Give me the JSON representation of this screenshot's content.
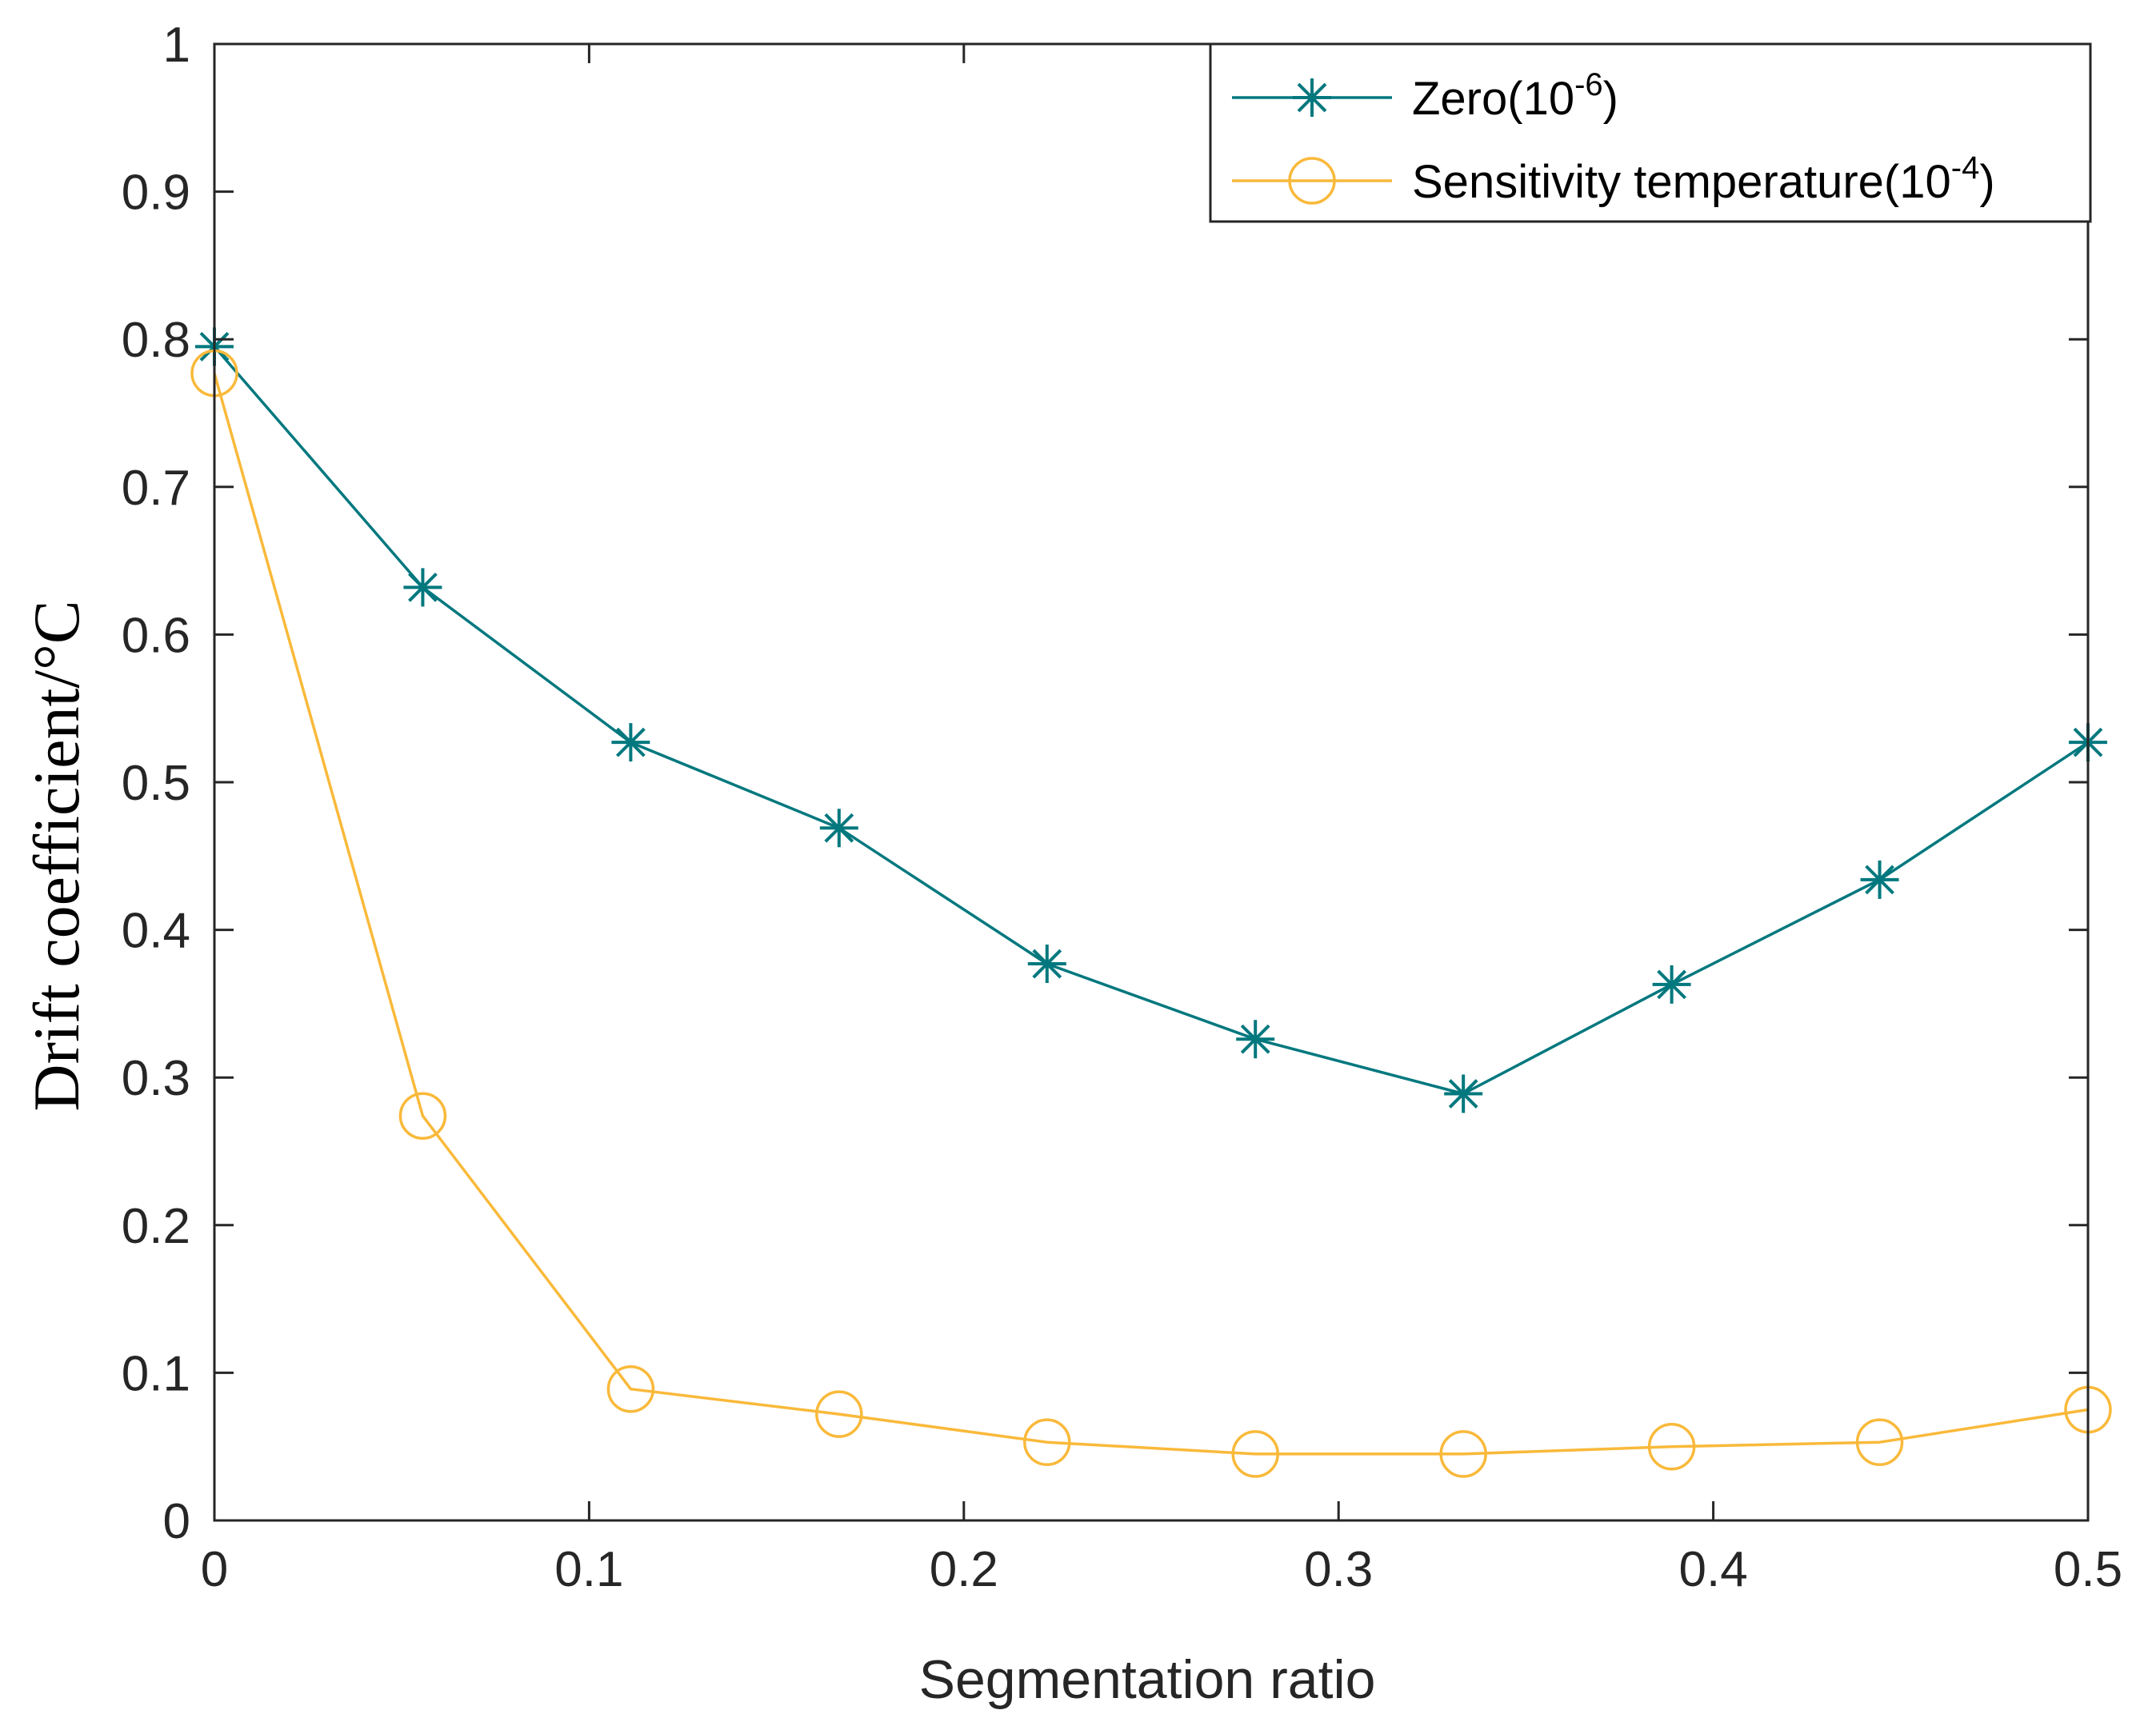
{
  "chart_data": {
    "type": "line",
    "title": "",
    "xlabel": "Segmentation ratio",
    "ylabel": "Drift coefficient/°C",
    "xlim": [
      0,
      0.5
    ],
    "ylim": [
      0,
      1
    ],
    "x_ticks": [
      "0",
      "0.1",
      "0.2",
      "0.3",
      "0.4",
      "0.5"
    ],
    "y_ticks": [
      "0",
      "0.1",
      "0.2",
      "0.3",
      "0.4",
      "0.5",
      "0.6",
      "0.7",
      "0.8",
      "0.9",
      "1"
    ],
    "grid": false,
    "legend_position": "top-right",
    "x": [
      0,
      0.0556,
      0.1111,
      0.1667,
      0.2222,
      0.2778,
      0.3333,
      0.3889,
      0.4444,
      0.5
    ],
    "series": [
      {
        "name": "Zero(10-6)",
        "legend_base": "Zero(10",
        "legend_sup": "-6",
        "legend_tail": ")",
        "marker": "asterisk",
        "color": "#00787E",
        "values": [
          0.795,
          0.632,
          0.527,
          0.469,
          0.377,
          0.326,
          0.289,
          0.363,
          0.434,
          0.527
        ]
      },
      {
        "name": "Sensitivity temperature(10-4)",
        "legend_base": "Sensitivity temperature(10",
        "legend_sup": "-4",
        "legend_tail": ")",
        "marker": "circle",
        "color": "#F9B93A",
        "values": [
          0.777,
          0.274,
          0.089,
          0.072,
          0.053,
          0.045,
          0.045,
          0.05,
          0.053,
          0.075
        ]
      }
    ]
  }
}
